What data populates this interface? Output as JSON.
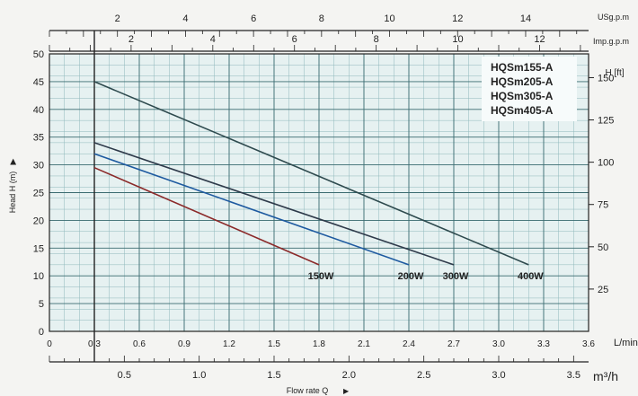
{
  "chart_data": {
    "type": "line",
    "xlabel": "Flow rate Q",
    "xunit": "L/min",
    "ylabel": "Head H (m)",
    "y2label": "H [ft]",
    "x_ticks": [
      "0",
      "0.3",
      "0.6",
      "0.9",
      "1.2",
      "1.5",
      "1.8",
      "2.1",
      "2.4",
      "2.7",
      "3.0",
      "3.3",
      "3.6"
    ],
    "y_ticks": [
      "0",
      "5",
      "10",
      "15",
      "20",
      "25",
      "30",
      "35",
      "40",
      "45",
      "50"
    ],
    "xlim": [
      0,
      3.6
    ],
    "ylim": [
      0,
      50
    ],
    "top_axis_usgpm": {
      "label": "USg.p.m",
      "ticks": [
        "2",
        "4",
        "6",
        "8",
        "10",
        "12",
        "14"
      ],
      "values": [
        2,
        4,
        6,
        8,
        10,
        12,
        14
      ]
    },
    "top_axis_impgpm": {
      "label": "Imp.g.p.m",
      "ticks": [
        "2",
        "4",
        "6",
        "8",
        "10",
        "12"
      ],
      "values": [
        2,
        4,
        6,
        8,
        10,
        12
      ]
    },
    "bottom_axis_m3h": {
      "label": "m³/h",
      "ticks": [
        "0.5",
        "1.0",
        "1.5",
        "2.0",
        "2.5",
        "3.0",
        "3.5"
      ],
      "values": [
        0.5,
        1.0,
        1.5,
        2.0,
        2.5,
        3.0,
        3.5
      ]
    },
    "right_axis_ft": {
      "ticks": [
        "25",
        "50",
        "75",
        "100",
        "125",
        "150"
      ],
      "values": [
        25,
        50,
        75,
        100,
        125,
        150
      ]
    },
    "series": [
      {
        "name": "HQSm155-A",
        "label": "150W",
        "color": "#8b2a2a",
        "x": [
          0.3,
          1.8
        ],
        "y": [
          29.5,
          12
        ]
      },
      {
        "name": "HQSm205-A",
        "label": "200W",
        "color": "#1e5aa0",
        "x": [
          0.3,
          2.4
        ],
        "y": [
          32,
          12
        ]
      },
      {
        "name": "HQSm305-A",
        "label": "300W",
        "color": "#2e3a4a",
        "x": [
          0.3,
          2.7
        ],
        "y": [
          34,
          12
        ]
      },
      {
        "name": "HQSm405-A",
        "label": "400W",
        "color": "#2e4a4e",
        "x": [
          0.3,
          3.2
        ],
        "y": [
          45,
          12
        ]
      }
    ],
    "grid": true,
    "legend": "top-right"
  }
}
